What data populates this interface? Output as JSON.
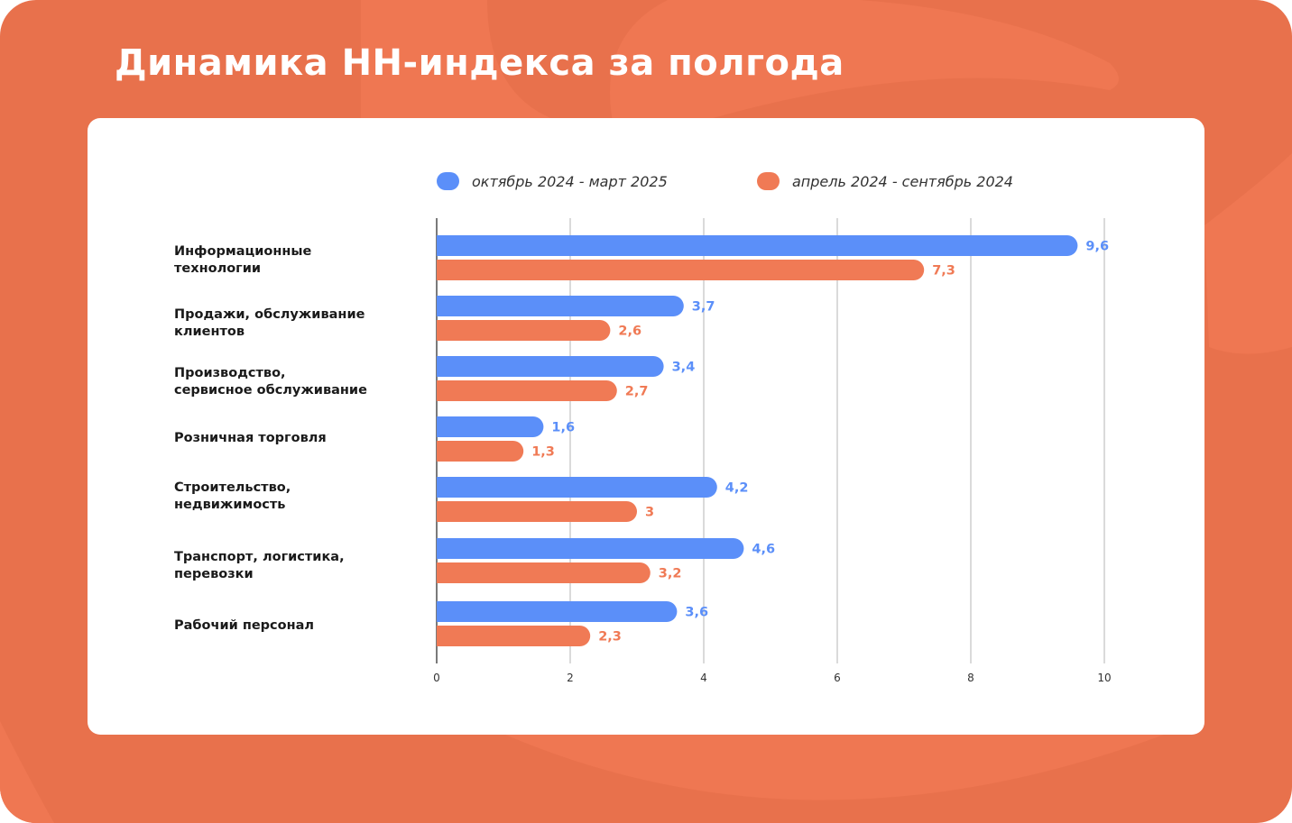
{
  "title": "Динамика HH-индекса за полгода",
  "colors": {
    "background": "#e8714c",
    "series_current": "#5b8ff9",
    "series_previous": "#f07a55",
    "grid": "#b5b5b5"
  },
  "chart_data": {
    "type": "bar",
    "orientation": "horizontal",
    "categories": [
      "Информационные\nтехнологии",
      "Продажи, обслуживание\nклиентов",
      "Производство,\nсервисное обслуживание",
      "Розничная торговля",
      "Строительство,\nнедвижимость",
      "Транспорт, логистика,\nперевозки",
      "Рабочий персонал"
    ],
    "series": [
      {
        "name": "октябрь 2024 - март 2025",
        "color": "#5b8ff9",
        "values": [
          9.6,
          3.7,
          3.4,
          1.6,
          4.2,
          4.6,
          3.6
        ],
        "labels": [
          "9,6",
          "3,7",
          "3,4",
          "1,6",
          "4,2",
          "4,6",
          "3,6"
        ]
      },
      {
        "name": "апрель 2024 - сентябрь 2024",
        "color": "#f07a55",
        "values": [
          7.3,
          2.6,
          2.7,
          1.3,
          3,
          3.2,
          2.3
        ],
        "labels": [
          "7,3",
          "2,6",
          "2,7",
          "1,3",
          "3",
          "3,2",
          "2,3"
        ]
      }
    ],
    "xlim": [
      0,
      10
    ],
    "x_ticks": [
      "0",
      "2",
      "4",
      "6",
      "8",
      "10"
    ],
    "grid": true,
    "legend": "top"
  }
}
